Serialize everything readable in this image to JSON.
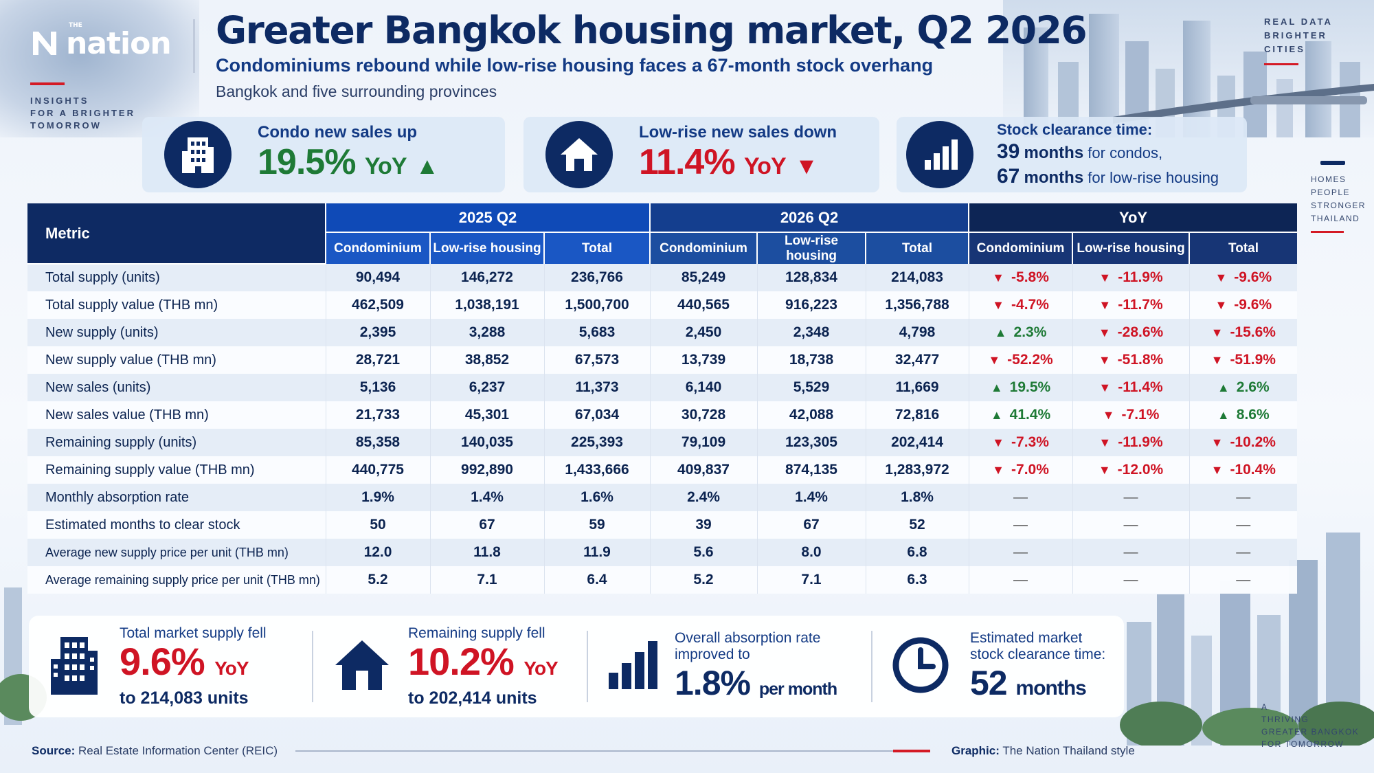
{
  "brand": {
    "logo_text": "nation",
    "logo_sup": "THE",
    "tagline": [
      "INSIGHTS",
      "FOR A BRIGHTER",
      "TOMORROW"
    ]
  },
  "header": {
    "title": "Greater Bangkok housing market, Q2 2026",
    "subtitle": "Condominiums rebound while low-rise housing faces a 67-month stock overhang",
    "subtitle2": "Bangkok and five surrounding provinces"
  },
  "side_tags": {
    "top_right": [
      "REAL DATA",
      "BRIGHTER",
      "CITIES"
    ],
    "mid_right": [
      "HOMES",
      "PEOPLE",
      "STRONGER",
      "THAILAND"
    ],
    "bottom_right": [
      "A",
      "THRIVING",
      "GREATER BANGKOK",
      "FOR TOMORROW"
    ]
  },
  "kpis": {
    "condo": {
      "label": "Condo new sales up",
      "value": "19.5%",
      "unit": "YoY",
      "direction": "up"
    },
    "lowrise": {
      "label": "Low-rise new sales down",
      "value": "11.4%",
      "unit": "YoY",
      "direction": "down"
    },
    "clearance": {
      "label": "Stock clearance time:",
      "line1_num": "39",
      "line1_bold": "months",
      "line1_rest": "for condos,",
      "line2_num": "67",
      "line2_bold": "months",
      "line2_rest": "for low-rise housing"
    }
  },
  "table": {
    "metric_header": "Metric",
    "groups": [
      "2025 Q2",
      "2026 Q2",
      "YoY"
    ],
    "sub_headers": [
      "Condominium",
      "Low-rise housing",
      "Total",
      "Condominium",
      "Low-rise housing",
      "Total",
      "Condominium",
      "Low-rise housing",
      "Total"
    ],
    "rows": [
      {
        "metric": "Total supply (units)",
        "v": [
          "90,494",
          "146,272",
          "236,766",
          "85,249",
          "128,834",
          "214,083"
        ],
        "yoy": [
          {
            "d": "dn",
            "a": "▼",
            "v": "-5.8%"
          },
          {
            "d": "dn",
            "a": "▼",
            "v": "-11.9%"
          },
          {
            "d": "dn",
            "a": "▼",
            "v": "-9.6%"
          }
        ]
      },
      {
        "metric": "Total supply value (THB mn)",
        "v": [
          "462,509",
          "1,038,191",
          "1,500,700",
          "440,565",
          "916,223",
          "1,356,788"
        ],
        "yoy": [
          {
            "d": "dn",
            "a": "▼",
            "v": "-4.7%"
          },
          {
            "d": "dn",
            "a": "▼",
            "v": "-11.7%"
          },
          {
            "d": "dn",
            "a": "▼",
            "v": "-9.6%"
          }
        ]
      },
      {
        "metric": "New supply (units)",
        "v": [
          "2,395",
          "3,288",
          "5,683",
          "2,450",
          "2,348",
          "4,798"
        ],
        "yoy": [
          {
            "d": "up",
            "a": "▲",
            "v": "2.3%"
          },
          {
            "d": "dn",
            "a": "▼",
            "v": "-28.6%"
          },
          {
            "d": "dn",
            "a": "▼",
            "v": "-15.6%"
          }
        ]
      },
      {
        "metric": "New supply value (THB mn)",
        "v": [
          "28,721",
          "38,852",
          "67,573",
          "13,739",
          "18,738",
          "32,477"
        ],
        "yoy": [
          {
            "d": "dn",
            "a": "▼",
            "v": "-52.2%"
          },
          {
            "d": "dn",
            "a": "▼",
            "v": "-51.8%"
          },
          {
            "d": "dn",
            "a": "▼",
            "v": "-51.9%"
          }
        ]
      },
      {
        "metric": "New sales (units)",
        "v": [
          "5,136",
          "6,237",
          "11,373",
          "6,140",
          "5,529",
          "11,669"
        ],
        "yoy": [
          {
            "d": "up",
            "a": "▲",
            "v": "19.5%"
          },
          {
            "d": "dn",
            "a": "▼",
            "v": "-11.4%"
          },
          {
            "d": "up",
            "a": "▲",
            "v": "2.6%"
          }
        ]
      },
      {
        "metric": "New sales value (THB mn)",
        "v": [
          "21,733",
          "45,301",
          "67,034",
          "30,728",
          "42,088",
          "72,816"
        ],
        "yoy": [
          {
            "d": "up",
            "a": "▲",
            "v": "41.4%"
          },
          {
            "d": "dn",
            "a": "▼",
            "v": "-7.1%"
          },
          {
            "d": "up",
            "a": "▲",
            "v": "8.6%"
          }
        ]
      },
      {
        "metric": "Remaining supply (units)",
        "v": [
          "85,358",
          "140,035",
          "225,393",
          "79,109",
          "123,305",
          "202,414"
        ],
        "yoy": [
          {
            "d": "dn",
            "a": "▼",
            "v": "-7.3%"
          },
          {
            "d": "dn",
            "a": "▼",
            "v": "-11.9%"
          },
          {
            "d": "dn",
            "a": "▼",
            "v": "-10.2%"
          }
        ]
      },
      {
        "metric": "Remaining supply value (THB mn)",
        "v": [
          "440,775",
          "992,890",
          "1,433,666",
          "409,837",
          "874,135",
          "1,283,972"
        ],
        "yoy": [
          {
            "d": "dn",
            "a": "▼",
            "v": "-7.0%"
          },
          {
            "d": "dn",
            "a": "▼",
            "v": "-12.0%"
          },
          {
            "d": "dn",
            "a": "▼",
            "v": "-10.4%"
          }
        ]
      },
      {
        "metric": "Monthly absorption rate",
        "v": [
          "1.9%",
          "1.4%",
          "1.6%",
          "2.4%",
          "1.4%",
          "1.8%"
        ],
        "yoy": [
          {
            "d": "na",
            "a": "",
            "v": "—"
          },
          {
            "d": "na",
            "a": "",
            "v": "—"
          },
          {
            "d": "na",
            "a": "",
            "v": "—"
          }
        ]
      },
      {
        "metric": "Estimated months to clear stock",
        "v": [
          "50",
          "67",
          "59",
          "39",
          "67",
          "52"
        ],
        "yoy": [
          {
            "d": "na",
            "a": "",
            "v": "—"
          },
          {
            "d": "na",
            "a": "",
            "v": "—"
          },
          {
            "d": "na",
            "a": "",
            "v": "—"
          }
        ]
      },
      {
        "metric": "Average new supply price per unit (THB mn)",
        "v": [
          "12.0",
          "11.8",
          "11.9",
          "5.6",
          "8.0",
          "6.8"
        ],
        "yoy": [
          {
            "d": "na",
            "a": "",
            "v": "—"
          },
          {
            "d": "na",
            "a": "",
            "v": "—"
          },
          {
            "d": "na",
            "a": "",
            "v": "—"
          }
        ]
      },
      {
        "metric": "Average remaining supply price per unit (THB mn)",
        "v": [
          "5.2",
          "7.1",
          "6.4",
          "5.2",
          "7.1",
          "6.3"
        ],
        "yoy": [
          {
            "d": "na",
            "a": "",
            "v": "—"
          },
          {
            "d": "na",
            "a": "",
            "v": "—"
          },
          {
            "d": "na",
            "a": "",
            "v": "—"
          }
        ]
      }
    ]
  },
  "bottom": {
    "b1": {
      "label": "Total market supply fell",
      "big": "9.6%",
      "unit": "YoY",
      "sub": "to 214,083 units"
    },
    "b2": {
      "label": "Remaining supply fell",
      "big": "10.2%",
      "unit": "YoY",
      "sub": "to 202,414 units"
    },
    "b3": {
      "label1": "Overall absorption rate",
      "label2": "improved to",
      "big": "1.8%",
      "unit": "per month"
    },
    "b4": {
      "label1": "Estimated market",
      "label2": "stock clearance time:",
      "big": "52",
      "unit": "months"
    }
  },
  "footer": {
    "source_label": "Source:",
    "source": "Real Estate Information Center (REIC)",
    "graphic_label": "Graphic:",
    "graphic": "The Nation Thailand style"
  },
  "colors": {
    "navy": "#0d2a63",
    "blue": "#0f4ab7",
    "red": "#cf1424",
    "green": "#1e7a36"
  }
}
